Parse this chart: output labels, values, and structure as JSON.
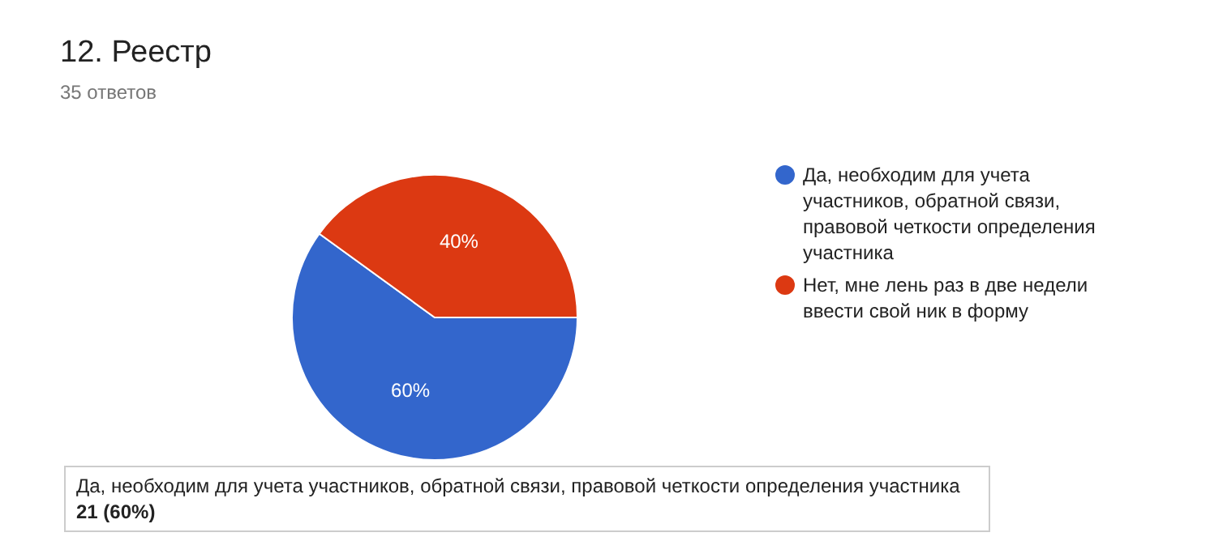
{
  "chart_data": {
    "type": "pie",
    "title": "12. Реестр",
    "subtitle": "35 ответов",
    "categories": [
      "Да, необходим для учета участников, обратной связи, правовой четкости определения участника",
      "Нет, мне лень раз в две недели ввести свой ник в форму"
    ],
    "values": [
      60,
      40
    ],
    "colors": [
      "#3366cc",
      "#dc3912"
    ],
    "value_labels": [
      "60%",
      "40%"
    ],
    "legend": "right",
    "annotations": [
      "21 (60%)"
    ]
  }
}
